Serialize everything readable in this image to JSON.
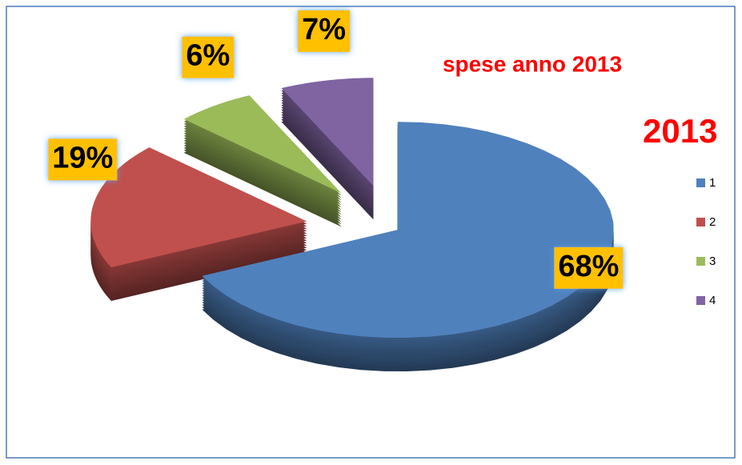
{
  "chart_data": {
    "type": "pie",
    "title": "spese anno 2013",
    "series_name": "2013",
    "categories": [
      "1",
      "2",
      "3",
      "4"
    ],
    "values": [
      68,
      19,
      6,
      7
    ],
    "value_labels": [
      "68%",
      "19%",
      "6%",
      "7%"
    ],
    "colors": [
      "#4f81bd",
      "#c0504d",
      "#9bbb59",
      "#8064a2"
    ],
    "legend": "right"
  }
}
